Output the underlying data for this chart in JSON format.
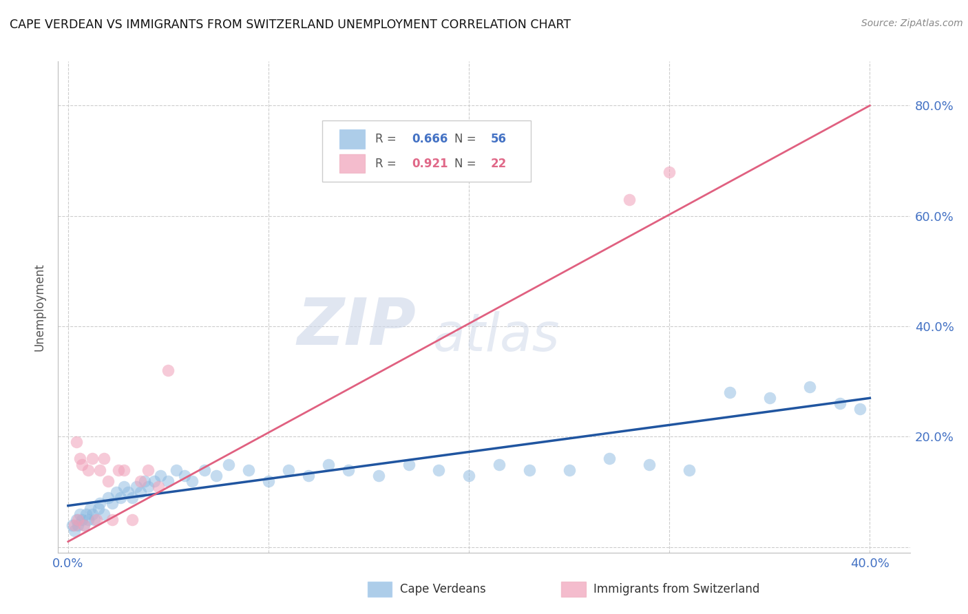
{
  "title": "CAPE VERDEAN VS IMMIGRANTS FROM SWITZERLAND UNEMPLOYMENT CORRELATION CHART",
  "source": "Source: ZipAtlas.com",
  "ylabel_label": "Unemployment",
  "xlim": [
    -0.005,
    0.42
  ],
  "ylim": [
    -0.01,
    0.88
  ],
  "x_ticks": [
    0.0,
    0.1,
    0.2,
    0.3,
    0.4
  ],
  "x_tick_labels": [
    "0.0%",
    "",
    "",
    "",
    "40.0%"
  ],
  "y_ticks": [
    0.0,
    0.2,
    0.4,
    0.6,
    0.8
  ],
  "y_tick_labels_right": [
    "",
    "20.0%",
    "40.0%",
    "60.0%",
    "80.0%"
  ],
  "legend_label1": "Cape Verdeans",
  "legend_label2": "Immigrants from Switzerland",
  "blue_color": "#8ab8e0",
  "pink_color": "#f0a0b8",
  "blue_line_color": "#2055a0",
  "pink_line_color": "#e06080",
  "watermark_zip": "ZIP",
  "watermark_atlas": "atlas",
  "blue_scatter_x": [
    0.002,
    0.003,
    0.004,
    0.005,
    0.006,
    0.007,
    0.008,
    0.009,
    0.01,
    0.011,
    0.012,
    0.013,
    0.015,
    0.016,
    0.018,
    0.02,
    0.022,
    0.024,
    0.026,
    0.028,
    0.03,
    0.032,
    0.034,
    0.036,
    0.038,
    0.04,
    0.043,
    0.046,
    0.05,
    0.054,
    0.058,
    0.062,
    0.068,
    0.074,
    0.08,
    0.09,
    0.1,
    0.11,
    0.12,
    0.13,
    0.14,
    0.155,
    0.17,
    0.185,
    0.2,
    0.215,
    0.23,
    0.25,
    0.27,
    0.29,
    0.31,
    0.33,
    0.35,
    0.37,
    0.385,
    0.395
  ],
  "blue_scatter_y": [
    0.04,
    0.03,
    0.05,
    0.04,
    0.06,
    0.05,
    0.04,
    0.06,
    0.05,
    0.07,
    0.06,
    0.05,
    0.07,
    0.08,
    0.06,
    0.09,
    0.08,
    0.1,
    0.09,
    0.11,
    0.1,
    0.09,
    0.11,
    0.1,
    0.12,
    0.11,
    0.12,
    0.13,
    0.12,
    0.14,
    0.13,
    0.12,
    0.14,
    0.13,
    0.15,
    0.14,
    0.12,
    0.14,
    0.13,
    0.15,
    0.14,
    0.13,
    0.15,
    0.14,
    0.13,
    0.15,
    0.14,
    0.14,
    0.16,
    0.15,
    0.14,
    0.28,
    0.27,
    0.29,
    0.26,
    0.25
  ],
  "pink_scatter_x": [
    0.003,
    0.004,
    0.005,
    0.006,
    0.007,
    0.008,
    0.01,
    0.012,
    0.014,
    0.016,
    0.018,
    0.02,
    0.022,
    0.025,
    0.028,
    0.032,
    0.036,
    0.04,
    0.045,
    0.05,
    0.28,
    0.3
  ],
  "pink_scatter_y": [
    0.04,
    0.19,
    0.05,
    0.16,
    0.15,
    0.04,
    0.14,
    0.16,
    0.05,
    0.14,
    0.16,
    0.12,
    0.05,
    0.14,
    0.14,
    0.05,
    0.12,
    0.14,
    0.11,
    0.32,
    0.63,
    0.68
  ],
  "blue_trendline_x": [
    0.0,
    0.4
  ],
  "blue_trendline_y": [
    0.075,
    0.27
  ],
  "pink_trendline_x": [
    0.0,
    0.4
  ],
  "pink_trendline_y": [
    0.01,
    0.8
  ]
}
